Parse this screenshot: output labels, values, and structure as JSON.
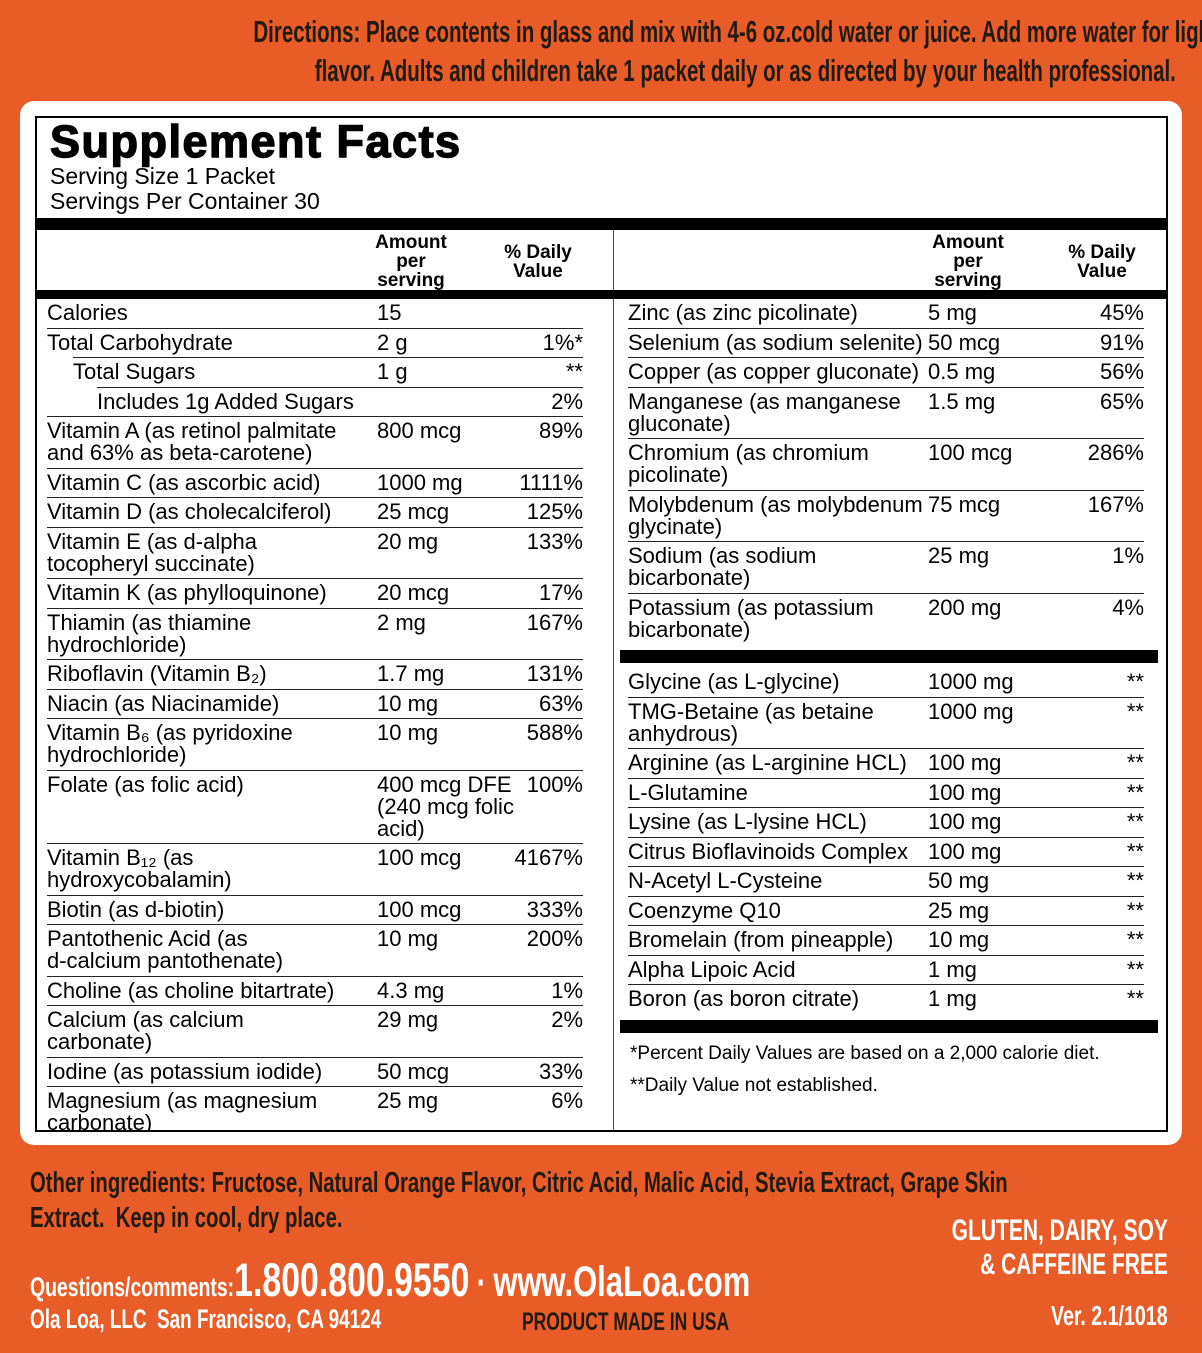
{
  "colors": {
    "background_orange": "#E85C27",
    "panel_white": "#FFFFFF",
    "rule_black": "#000000",
    "dark_text": "#231A12"
  },
  "directions": {
    "text": "Directions: Place contents in glass and mix with 4-6 oz.cold water or juice. Add more water for lighter\nflavor. Adults and children take 1 packet daily or as directed by your health professional."
  },
  "supplement": {
    "title": "Supplement Facts",
    "serving_size": "Serving Size 1 Packet",
    "servings_per_container": "Servings Per Container 30",
    "amount_header": "Amount\nper\nserving",
    "daily_header": "% Daily\nValue",
    "left_rows": [
      {
        "name": "Calories",
        "amount": "15",
        "pct": ""
      },
      {
        "name": "Total Carbohydrate",
        "amount": "2 g",
        "pct": "1%*"
      },
      {
        "name": "Total Sugars",
        "amount": "1 g",
        "pct": "**",
        "indent": 1
      },
      {
        "name": "Includes 1g Added Sugars",
        "amount": "",
        "pct": "2%",
        "indent": 2
      },
      {
        "name": "Vitamin A (as retinol palmitate\nand 63% as beta-carotene)",
        "amount": "800 mcg",
        "pct": "89%"
      },
      {
        "name": "Vitamin C (as ascorbic acid)",
        "amount": "1000 mg",
        "pct": "1111%"
      },
      {
        "name": "Vitamin D (as cholecalciferol)",
        "amount": "25 mcg",
        "pct": "125%"
      },
      {
        "name": "Vitamin E (as d-alpha\ntocopheryl succinate)",
        "amount": "20 mg",
        "pct": "133%"
      },
      {
        "name": "Vitamin K (as phylloquinone)",
        "amount": "20 mcg",
        "pct": "17%"
      },
      {
        "name": "Thiamin (as thiamine\nhydrochloride)",
        "amount": "2 mg",
        "pct": "167%"
      },
      {
        "name": "Riboflavin (Vitamin B₂)",
        "amount": "1.7 mg",
        "pct": "131%"
      },
      {
        "name": "Niacin (as Niacinamide)",
        "amount": "10 mg",
        "pct": "63%"
      },
      {
        "name": "Vitamin B₆ (as pyridoxine\nhydrochloride)",
        "amount": "10 mg",
        "pct": "588%"
      },
      {
        "name": "Folate (as folic acid)",
        "amount": "400 mcg DFE\n(240 mcg folic acid)",
        "pct": "100%"
      },
      {
        "name": "Vitamin B₁₂ (as\nhydroxycobalamin)",
        "amount": "100 mcg",
        "pct": "4167%"
      },
      {
        "name": "Biotin (as d-biotin)",
        "amount": "100 mcg",
        "pct": "333%"
      },
      {
        "name": "Pantothenic Acid (as\nd-calcium pantothenate)",
        "amount": "10 mg",
        "pct": "200%"
      },
      {
        "name": "Choline (as choline bitartrate)",
        "amount": "4.3 mg",
        "pct": "1%"
      },
      {
        "name": "Calcium (as calcium\ncarbonate)",
        "amount": "29 mg",
        "pct": "2%"
      },
      {
        "name": "Iodine (as potassium iodide)",
        "amount": "50 mcg",
        "pct": "33%"
      },
      {
        "name": "Magnesium (as magnesium\ncarbonate)",
        "amount": "25 mg",
        "pct": "6%"
      }
    ],
    "right_rows": [
      {
        "name": "Zinc (as zinc picolinate)",
        "amount": "5 mg",
        "pct": "45%"
      },
      {
        "name": "Selenium (as sodium selenite)",
        "amount": "50 mcg",
        "pct": "91%"
      },
      {
        "name": "Copper (as copper gluconate)",
        "amount": "0.5 mg",
        "pct": "56%"
      },
      {
        "name": "Manganese (as manganese\ngluconate)",
        "amount": "1.5 mg",
        "pct": "65%"
      },
      {
        "name": "Chromium (as chromium\npicolinate)",
        "amount": "100 mcg",
        "pct": "286%"
      },
      {
        "name": "Molybdenum (as molybdenum\nglycinate)",
        "amount": "75 mcg",
        "pct": "167%"
      },
      {
        "name": "Sodium (as sodium\nbicarbonate)",
        "amount": "25 mg",
        "pct": "1%"
      },
      {
        "name": "Potassium (as potassium\nbicarbonate)",
        "amount": "200 mg",
        "pct": "4%"
      },
      {
        "type": "bar"
      },
      {
        "name": "Glycine (as L-glycine)",
        "amount": "1000 mg",
        "pct": "**"
      },
      {
        "name": "TMG-Betaine (as betaine\nanhydrous)",
        "amount": "1000 mg",
        "pct": "**"
      },
      {
        "name": "Arginine (as L-arginine HCL)",
        "amount": "100 mg",
        "pct": "**"
      },
      {
        "name": "L-Glutamine",
        "amount": "100 mg",
        "pct": "**"
      },
      {
        "name": "Lysine (as L-lysine HCL)",
        "amount": "100 mg",
        "pct": "**"
      },
      {
        "name": "Citrus Bioflavinoids Complex",
        "amount": "100 mg",
        "pct": "**"
      },
      {
        "name": "N-Acetyl L-Cysteine",
        "amount": "50 mg",
        "pct": "**"
      },
      {
        "name": "Coenzyme Q10",
        "amount": "25 mg",
        "pct": "**"
      },
      {
        "name": "Bromelain (from pineapple)",
        "amount": "10 mg",
        "pct": "**"
      },
      {
        "name": "Alpha Lipoic Acid",
        "amount": "1 mg",
        "pct": "**"
      },
      {
        "name": "Boron (as boron citrate)",
        "amount": "1 mg",
        "pct": "**"
      },
      {
        "type": "bar"
      }
    ],
    "footnotes": [
      "*Percent Daily Values are based on a 2,000 calorie diet.",
      "**Daily Value not established."
    ]
  },
  "footer": {
    "other_ingredients": "Other ingredients: Fructose, Natural Orange Flavor, Citric Acid, Malic Acid, Stevia Extract, Grape Skin\nExtract.  Keep in cool, dry place.",
    "free_claims": "GLUTEN, DAIRY, SOY\n& CAFFEINE FREE",
    "questions_label": "Questions/comments:",
    "phone": "1.800.800.9550",
    "separator": "·",
    "website": "www.OlaLoa.com",
    "company": "Ola Loa, LLC  San Francisco, CA 94124",
    "made_in": "PRODUCT MADE IN USA",
    "version": "Ver. 2.1/1018"
  }
}
